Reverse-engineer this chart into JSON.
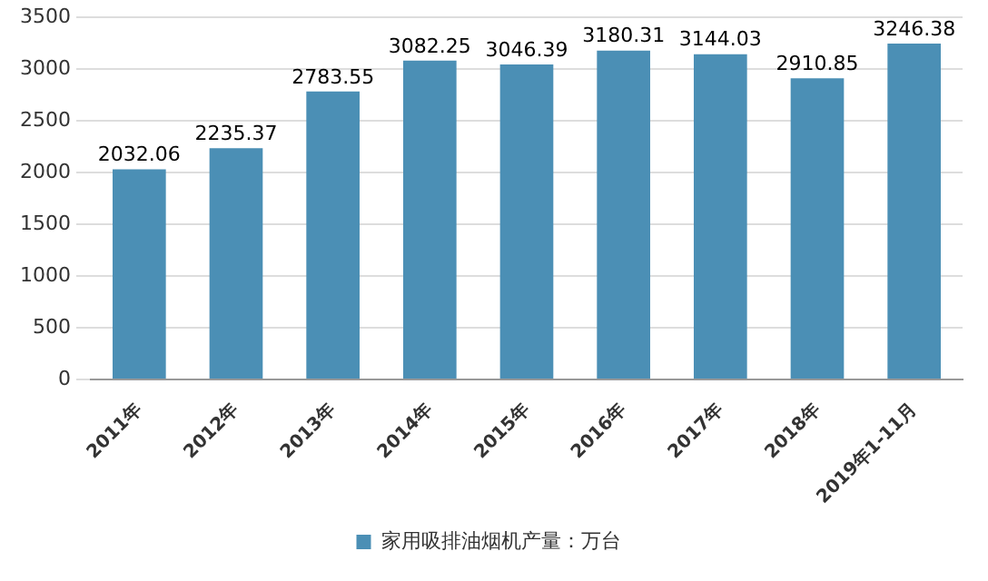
{
  "chart_data": {
    "type": "bar",
    "categories": [
      "2011年",
      "2012年",
      "2013年",
      "2014年",
      "2015年",
      "2016年",
      "2017年",
      "2018年",
      "2019年1-11月"
    ],
    "series": [
      {
        "name": "家用吸排油烟机产量：万台",
        "color": "#4b8fb5",
        "values": [
          2032.06,
          2235.37,
          2783.55,
          3082.25,
          3046.39,
          3180.31,
          3144.03,
          2910.85,
          3246.38
        ]
      }
    ],
    "ylim": [
      0,
      3500
    ],
    "yticks": [
      0,
      500,
      1000,
      1500,
      2000,
      2500,
      3000,
      3500
    ],
    "grid": "y",
    "legend": "bottom",
    "data_labels": true
  }
}
